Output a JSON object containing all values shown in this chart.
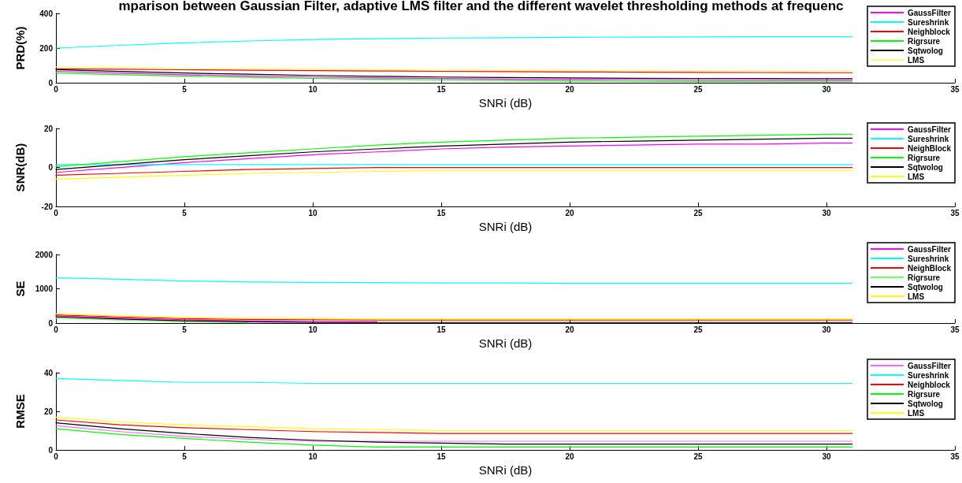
{
  "chart_data": [
    {
      "type": "line",
      "title": "mparison between Gaussian Filter, adaptive LMS filter and the different wavelet thresholding methods at frequenc",
      "xlabel": "SNRi (dB)",
      "ylabel": "PRD(%)",
      "x": [
        0,
        2.5,
        5,
        7.5,
        10,
        12.5,
        15,
        17.5,
        20,
        22.5,
        25,
        27.5,
        30,
        31
      ],
      "xlim": [
        0,
        35
      ],
      "xticks": [
        0,
        5,
        10,
        15,
        20,
        25,
        30,
        35
      ],
      "ylim": [
        0,
        400
      ],
      "yticks": [
        0,
        200,
        400
      ],
      "grid": false,
      "legend": "top right",
      "marker": "none",
      "line_style": "solid",
      "series": [
        {
          "name": "GaussFilter",
          "color": "#ff00ff",
          "values": [
            66,
            55,
            46,
            39,
            33,
            28,
            24,
            21,
            19,
            17,
            15,
            14,
            13,
            13
          ]
        },
        {
          "name": "Sureshrink",
          "color": "#00ffff",
          "values": [
            200,
            216,
            230,
            241,
            249,
            254,
            258,
            260,
            262,
            263,
            264,
            265,
            265,
            265
          ]
        },
        {
          "name": "Neighblock",
          "color": "#ff0000",
          "values": [
            80,
            78,
            75,
            72,
            70,
            68,
            66,
            64,
            62,
            61,
            60,
            59,
            58,
            58
          ]
        },
        {
          "name": "Rigrsure",
          "color": "#00ff00",
          "values": [
            56,
            46,
            38,
            31,
            25,
            20,
            16,
            13,
            10,
            8,
            6,
            5,
            4,
            4
          ]
        },
        {
          "name": "Sqtwolog",
          "color": "#000000",
          "values": [
            76,
            65,
            56,
            49,
            42,
            37,
            33,
            30,
            28,
            26,
            25,
            24,
            23,
            23
          ]
        },
        {
          "name": "LMS",
          "color": "#ffff66",
          "values": [
            92,
            88,
            84,
            80,
            78,
            76,
            74,
            73,
            72,
            71,
            70,
            70,
            69,
            69
          ]
        }
      ]
    },
    {
      "type": "line",
      "xlabel": "SNRi (dB)",
      "ylabel": "SNR(dB)",
      "x": [
        0,
        2.5,
        5,
        7.5,
        10,
        12.5,
        15,
        17.5,
        20,
        22.5,
        25,
        27.5,
        30,
        31
      ],
      "xlim": [
        0,
        35
      ],
      "xticks": [
        0,
        5,
        10,
        15,
        20,
        25,
        30,
        35
      ],
      "ylim": [
        -20,
        20
      ],
      "yticks": [
        -20,
        0,
        20
      ],
      "grid": false,
      "legend": "top right",
      "marker": "none",
      "line_style": "solid",
      "series": [
        {
          "name": "GaussFilter",
          "color": "#ff00ff",
          "values": [
            -2.5,
            0,
            2.5,
            4.5,
            6.5,
            8,
            9.5,
            10.5,
            11,
            11.5,
            12,
            12,
            12.5,
            12.5
          ]
        },
        {
          "name": "Sureshrink",
          "color": "#00ffff",
          "values": [
            1.5,
            1.5,
            1.5,
            1.5,
            1.5,
            1.5,
            1.5,
            1.5,
            1.5,
            1.5,
            1.5,
            1.5,
            1.5,
            1.5
          ]
        },
        {
          "name": "NeighBlock",
          "color": "#ff0000",
          "values": [
            -4,
            -3,
            -2,
            -1,
            -0.5,
            0,
            0,
            0,
            0,
            0,
            0,
            0,
            0,
            0
          ]
        },
        {
          "name": "Rigrsure",
          "color": "#00ff00",
          "values": [
            0.5,
            3,
            5.5,
            7.5,
            9.5,
            11.5,
            13,
            14,
            15,
            15.5,
            16,
            16.5,
            17,
            17
          ]
        },
        {
          "name": "Sqtwolog",
          "color": "#000000",
          "values": [
            -1,
            1.5,
            4,
            6,
            8,
            9.5,
            11,
            12,
            13,
            13.5,
            14,
            14.5,
            15,
            15
          ]
        },
        {
          "name": "LMS",
          "color": "#ffff00",
          "values": [
            -6,
            -5,
            -4,
            -3,
            -2.5,
            -2,
            -1.5,
            -1.5,
            -1.5,
            -1.5,
            -1.5,
            -1.5,
            -1.5,
            -1.5
          ]
        }
      ]
    },
    {
      "type": "line",
      "xlabel": "SNRi (dB)",
      "ylabel": "SE",
      "x": [
        0,
        2.5,
        5,
        7.5,
        10,
        12.5,
        15,
        17.5,
        20,
        22.5,
        25,
        27.5,
        30,
        31
      ],
      "xlim": [
        0,
        35
      ],
      "xticks": [
        0,
        5,
        10,
        15,
        20,
        25,
        30,
        35
      ],
      "ylim": [
        0,
        2000
      ],
      "yticks": [
        0,
        1000,
        2000
      ],
      "grid": false,
      "legend": "top right",
      "marker": "none",
      "line_style": "solid",
      "series": [
        {
          "name": "GaussFilter",
          "color": "#ff00ff",
          "values": [
            210,
            150,
            100,
            70,
            50,
            40,
            null,
            null,
            null,
            null,
            null,
            null,
            null,
            null
          ]
        },
        {
          "name": "Sureshrink",
          "color": "#00ffff",
          "values": [
            1320,
            1280,
            1230,
            1200,
            1190,
            1180,
            1170,
            1170,
            1160,
            1160,
            1160,
            1160,
            1160,
            1160
          ]
        },
        {
          "name": "NeighBlock",
          "color": "#ff0000",
          "values": [
            240,
            180,
            130,
            110,
            100,
            90,
            90,
            90,
            90,
            90,
            90,
            90,
            90,
            90
          ]
        },
        {
          "name": "Rigrsure",
          "color": "#66ff66",
          "values": [
            150,
            90,
            40,
            10,
            null,
            null,
            null,
            null,
            null,
            null,
            null,
            null,
            null,
            null
          ]
        },
        {
          "name": "Sqtwolog",
          "color": "#000000",
          "values": [
            180,
            120,
            70,
            40,
            20,
            20,
            20,
            20,
            20,
            20,
            20,
            20,
            20,
            20
          ]
        },
        {
          "name": "LMS",
          "color": "#ffff00",
          "values": [
            270,
            210,
            160,
            140,
            130,
            120,
            120,
            120,
            120,
            120,
            120,
            120,
            120,
            120
          ]
        }
      ]
    },
    {
      "type": "line",
      "xlabel": "SNRi (dB)",
      "ylabel": "RMSE",
      "x": [
        0,
        2.5,
        5,
        7.5,
        10,
        12.5,
        15,
        17.5,
        20,
        22.5,
        25,
        27.5,
        30,
        31
      ],
      "xlim": [
        0,
        35
      ],
      "xticks": [
        0,
        5,
        10,
        15,
        20,
        25,
        30,
        35
      ],
      "ylim": [
        0,
        40
      ],
      "yticks": [
        0,
        20,
        40
      ],
      "grid": false,
      "legend": "top right",
      "marker": "none",
      "line_style": "solid",
      "series": [
        {
          "name": "GaussFilter",
          "color": "#ff66ff",
          "values": [
            12.5,
            9.5,
            7,
            5.5,
            4.5,
            4.5,
            4.5,
            4.5,
            4.5,
            4.5,
            4.5,
            4.5,
            4.5,
            4.5
          ]
        },
        {
          "name": "Sureshrink",
          "color": "#00ffff",
          "values": [
            37,
            36,
            35,
            35,
            34.5,
            34.5,
            34.5,
            34.5,
            34.5,
            34.5,
            34.5,
            34.5,
            34.5,
            34.5
          ]
        },
        {
          "name": "Neighblock",
          "color": "#ff0000",
          "values": [
            15.5,
            13,
            11.5,
            10.5,
            9.5,
            9,
            8.5,
            8.5,
            8.5,
            8.5,
            8.5,
            8.5,
            8.5,
            8.5
          ]
        },
        {
          "name": "Rigrsure",
          "color": "#00ff00",
          "values": [
            11,
            8,
            6,
            4,
            2.5,
            1.5,
            1.5,
            1.5,
            1.5,
            1.5,
            1.5,
            1.5,
            1.5,
            1.5
          ]
        },
        {
          "name": "Sqtwolog",
          "color": "#000000",
          "values": [
            14,
            11,
            8.5,
            6.5,
            5,
            4,
            3.5,
            3,
            3,
            3,
            3,
            3,
            3,
            3
          ]
        },
        {
          "name": "LMS",
          "color": "#ffff00",
          "values": [
            17,
            14.5,
            13,
            12,
            11,
            10.5,
            10,
            10,
            10,
            10,
            10,
            10,
            10,
            10
          ]
        }
      ]
    }
  ]
}
